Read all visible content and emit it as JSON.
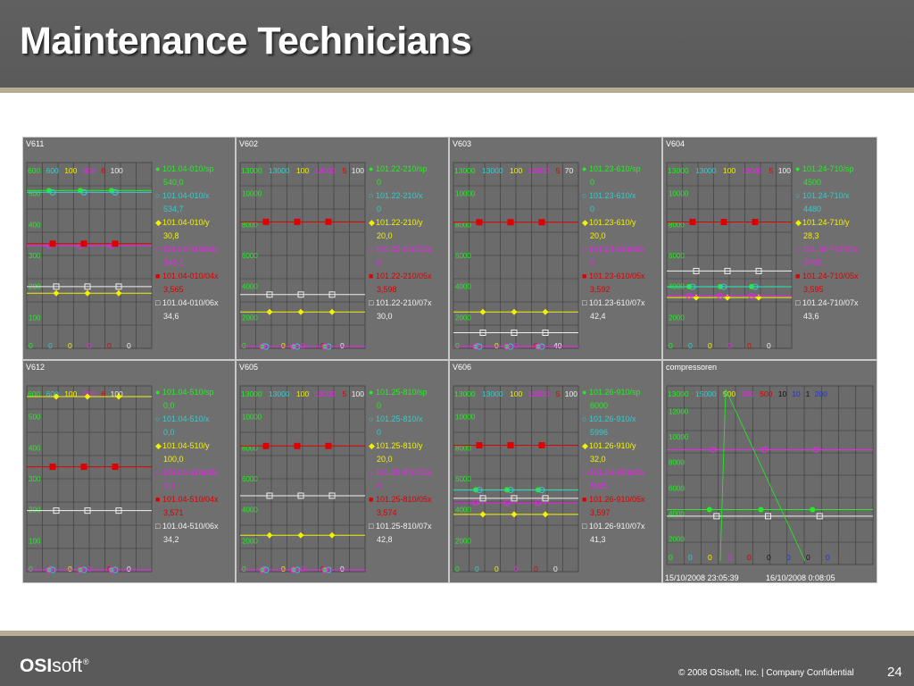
{
  "slide": {
    "title": "Maintenance Technicians",
    "logo": {
      "bold": "OSI",
      "light": "soft",
      "mark": "®"
    },
    "copyright": "© 2008 OSIsoft, Inc.  |  Company Confidential",
    "page_number": "24"
  },
  "colors": {
    "green": "#22ee22",
    "cyan": "#33cccc",
    "yellow": "#f2f200",
    "magenta": "#ee22ee",
    "red": "#dd0000",
    "white": "#f0f0f0",
    "blue": "#2233dd",
    "black": "#111111"
  },
  "chart_data": [
    {
      "name": "V611",
      "type": "line",
      "ylim": [
        0,
        600
      ],
      "y_ticks": [
        "500",
        "400",
        "300",
        "200",
        "100"
      ],
      "scale_tops": [
        {
          "text": "600",
          "color": "green"
        },
        {
          "text": "600",
          "color": "cyan"
        },
        {
          "text": "100",
          "color": "yellow"
        },
        {
          "text": "600",
          "color": "magenta"
        },
        {
          "text": "6",
          "color": "red"
        },
        {
          "text": "100",
          "color": "white"
        }
      ],
      "scale_bottoms": [
        {
          "text": "0",
          "color": "green"
        },
        {
          "text": "0",
          "color": "cyan"
        },
        {
          "text": "0",
          "color": "yellow"
        },
        {
          "text": "0",
          "color": "magenta"
        },
        {
          "text": "0",
          "color": "red"
        },
        {
          "text": "0",
          "color": "white"
        }
      ],
      "series": [
        {
          "tag": "101.04-010/sp",
          "value": "540,0",
          "color": "green",
          "marker": "circle",
          "level": 0.9
        },
        {
          "tag": "101.04-010/x",
          "value": "534,7",
          "color": "cyan",
          "marker": "circle-open",
          "level": 0.89
        },
        {
          "tag": "101.04-010/y",
          "value": "30,8",
          "color": "yellow",
          "marker": "diamond",
          "level": 0.308
        },
        {
          "tag": "101.04-010/02x",
          "value": "349,1",
          "color": "magenta",
          "marker": "circle-open",
          "level": 0.582
        },
        {
          "tag": "101.04-010/04x",
          "value": "3,565",
          "color": "red",
          "marker": "square",
          "level": 0.594
        },
        {
          "tag": "101.04-010/06x",
          "value": "34,6",
          "color": "white",
          "marker": "square-open",
          "level": 0.346
        }
      ]
    },
    {
      "name": "V602",
      "type": "line",
      "ylim": [
        0,
        13000
      ],
      "y_ticks": [
        "10000",
        "8000",
        "6000",
        "4000",
        "2000"
      ],
      "scale_tops": [
        {
          "text": "13000",
          "color": "green"
        },
        {
          "text": "13000",
          "color": "cyan"
        },
        {
          "text": "100",
          "color": "yellow"
        },
        {
          "text": "13000",
          "color": "magenta"
        },
        {
          "text": "5",
          "color": "red"
        },
        {
          "text": "100",
          "color": "white"
        }
      ],
      "scale_bottoms": [
        {
          "text": "0",
          "color": "green"
        },
        {
          "text": "0",
          "color": "cyan"
        },
        {
          "text": "0",
          "color": "yellow"
        },
        {
          "text": "0",
          "color": "magenta"
        },
        {
          "text": "0",
          "color": "red"
        },
        {
          "text": "0",
          "color": "white"
        }
      ],
      "series": [
        {
          "tag": "101.22-210/sp",
          "value": "0",
          "color": "green",
          "marker": "circle",
          "level": 0.0
        },
        {
          "tag": "101.22-210/x",
          "value": "0",
          "color": "cyan",
          "marker": "circle-open",
          "level": 0.0
        },
        {
          "tag": "101.22-210/y",
          "value": "20,0",
          "color": "yellow",
          "marker": "diamond",
          "level": 0.2
        },
        {
          "tag": "101.22-210/02x",
          "value": "0",
          "color": "magenta",
          "marker": "circle-open",
          "level": 0.0
        },
        {
          "tag": "101.22-210/05x",
          "value": "3,598",
          "color": "red",
          "marker": "square",
          "level": 0.72
        },
        {
          "tag": "101.22-210/07x",
          "value": "30,0",
          "color": "white",
          "marker": "square-open",
          "level": 0.3
        }
      ]
    },
    {
      "name": "V603",
      "type": "line",
      "ylim": [
        0,
        13000
      ],
      "y_ticks": [
        "10000",
        "8000",
        "6000",
        "4000",
        "2000"
      ],
      "scale_tops": [
        {
          "text": "13000",
          "color": "green"
        },
        {
          "text": "13000",
          "color": "cyan"
        },
        {
          "text": "100",
          "color": "yellow"
        },
        {
          "text": "13000",
          "color": "magenta"
        },
        {
          "text": "5",
          "color": "red"
        },
        {
          "text": "70",
          "color": "white"
        }
      ],
      "scale_bottoms": [
        {
          "text": "0",
          "color": "green"
        },
        {
          "text": "0",
          "color": "cyan"
        },
        {
          "text": "0",
          "color": "yellow"
        },
        {
          "text": "0",
          "color": "magenta"
        },
        {
          "text": "0",
          "color": "red"
        },
        {
          "text": "40",
          "color": "white"
        }
      ],
      "series": [
        {
          "tag": "101.23-610/sp",
          "value": "0",
          "color": "green",
          "marker": "circle",
          "level": 0.0
        },
        {
          "tag": "101.23-610/x",
          "value": "0",
          "color": "cyan",
          "marker": "circle-open",
          "level": 0.0
        },
        {
          "tag": "101.23-610/y",
          "value": "20,0",
          "color": "yellow",
          "marker": "diamond",
          "level": 0.2
        },
        {
          "tag": "101.23-610/02x",
          "value": "0",
          "color": "magenta",
          "marker": "circle-open",
          "level": 0.0
        },
        {
          "tag": "101.23-610/05x",
          "value": "3,592",
          "color": "red",
          "marker": "square",
          "level": 0.718
        },
        {
          "tag": "101.23-610/07x",
          "value": "42,4",
          "color": "white",
          "marker": "square-open",
          "level": 0.08
        }
      ]
    },
    {
      "name": "V604",
      "type": "line",
      "ylim": [
        0,
        13000
      ],
      "y_ticks": [
        "10000",
        "8000",
        "6000",
        "4000",
        "2000"
      ],
      "scale_tops": [
        {
          "text": "13000",
          "color": "green"
        },
        {
          "text": "13000",
          "color": "cyan"
        },
        {
          "text": "100",
          "color": "yellow"
        },
        {
          "text": "13000",
          "color": "magenta"
        },
        {
          "text": "5",
          "color": "red"
        },
        {
          "text": "100",
          "color": "white"
        }
      ],
      "scale_bottoms": [
        {
          "text": "0",
          "color": "green"
        },
        {
          "text": "0",
          "color": "cyan"
        },
        {
          "text": "0",
          "color": "yellow"
        },
        {
          "text": "0",
          "color": "magenta"
        },
        {
          "text": "0",
          "color": "red"
        },
        {
          "text": "0",
          "color": "white"
        }
      ],
      "series": [
        {
          "tag": "101.24-710/sp",
          "value": "4500",
          "color": "green",
          "marker": "circle",
          "level": 0.346
        },
        {
          "tag": "101.24-710/x",
          "value": "4480",
          "color": "cyan",
          "marker": "circle-open",
          "level": 0.345
        },
        {
          "tag": "101.24-710/y",
          "value": "28,3",
          "color": "yellow",
          "marker": "diamond",
          "level": 0.283
        },
        {
          "tag": "101.24-710/02x",
          "value": "3793",
          "color": "magenta",
          "marker": "circle-open",
          "level": 0.292
        },
        {
          "tag": "101.24-710/05x",
          "value": "3,595",
          "color": "red",
          "marker": "square",
          "level": 0.719
        },
        {
          "tag": "101.24-710/07x",
          "value": "43,6",
          "color": "white",
          "marker": "square-open",
          "level": 0.436
        }
      ]
    },
    {
      "name": "V612",
      "type": "line",
      "ylim": [
        0,
        600
      ],
      "y_ticks": [
        "500",
        "400",
        "300",
        "200",
        "100"
      ],
      "scale_tops": [
        {
          "text": "600",
          "color": "green"
        },
        {
          "text": "600",
          "color": "cyan"
        },
        {
          "text": "100",
          "color": "yellow"
        },
        {
          "text": "600",
          "color": "magenta"
        },
        {
          "text": "6",
          "color": "red"
        },
        {
          "text": "100",
          "color": "white"
        }
      ],
      "scale_bottoms": [
        {
          "text": "0",
          "color": "green"
        },
        {
          "text": "0",
          "color": "cyan"
        },
        {
          "text": "0",
          "color": "yellow"
        },
        {
          "text": "0",
          "color": "magenta"
        },
        {
          "text": "0",
          "color": "red"
        },
        {
          "text": "0",
          "color": "white"
        }
      ],
      "series": [
        {
          "tag": "101.04-510/sp",
          "value": "0,0",
          "color": "green",
          "marker": "circle",
          "level": 0.0
        },
        {
          "tag": "101.04-510/x",
          "value": "0,0",
          "color": "cyan",
          "marker": "circle-open",
          "level": 0.0
        },
        {
          "tag": "101.04-510/y",
          "value": "100,0",
          "color": "yellow",
          "marker": "diamond",
          "level": 1.0
        },
        {
          "tag": "101.04-510/02x",
          "value": "0,0",
          "color": "magenta",
          "marker": "circle-open",
          "level": 0.0
        },
        {
          "tag": "101.04-510/04x",
          "value": "3,571",
          "color": "red",
          "marker": "square",
          "level": 0.595
        },
        {
          "tag": "101.04-510/06x",
          "value": "34,2",
          "color": "white",
          "marker": "square-open",
          "level": 0.342
        }
      ]
    },
    {
      "name": "V605",
      "type": "line",
      "ylim": [
        0,
        13000
      ],
      "y_ticks": [
        "10000",
        "8000",
        "6000",
        "4000",
        "2000"
      ],
      "scale_tops": [
        {
          "text": "13000",
          "color": "green"
        },
        {
          "text": "13000",
          "color": "cyan"
        },
        {
          "text": "100",
          "color": "yellow"
        },
        {
          "text": "13000",
          "color": "magenta"
        },
        {
          "text": "5",
          "color": "red"
        },
        {
          "text": "100",
          "color": "white"
        }
      ],
      "scale_bottoms": [
        {
          "text": "0",
          "color": "green"
        },
        {
          "text": "0",
          "color": "cyan"
        },
        {
          "text": "0",
          "color": "yellow"
        },
        {
          "text": "0",
          "color": "magenta"
        },
        {
          "text": "0",
          "color": "red"
        },
        {
          "text": "0",
          "color": "white"
        }
      ],
      "series": [
        {
          "tag": "101.25-810/sp",
          "value": "0",
          "color": "green",
          "marker": "circle",
          "level": 0.0
        },
        {
          "tag": "101.25-810/x",
          "value": "0",
          "color": "cyan",
          "marker": "circle-open",
          "level": 0.0
        },
        {
          "tag": "101.25-810/y",
          "value": "20,0",
          "color": "yellow",
          "marker": "diamond",
          "level": 0.2
        },
        {
          "tag": "101.25-810/02x",
          "value": "0",
          "color": "magenta",
          "marker": "circle-open",
          "level": 0.0
        },
        {
          "tag": "101.25-810/05x",
          "value": "3,574",
          "color": "red",
          "marker": "square",
          "level": 0.715
        },
        {
          "tag": "101.25-810/07x",
          "value": "42,8",
          "color": "white",
          "marker": "square-open",
          "level": 0.428
        }
      ]
    },
    {
      "name": "V606",
      "type": "line",
      "ylim": [
        0,
        13000
      ],
      "y_ticks": [
        "10000",
        "8000",
        "6000",
        "4000",
        "2000"
      ],
      "scale_tops": [
        {
          "text": "13000",
          "color": "green"
        },
        {
          "text": "13000",
          "color": "cyan"
        },
        {
          "text": "100",
          "color": "yellow"
        },
        {
          "text": "13000",
          "color": "magenta"
        },
        {
          "text": "5",
          "color": "red"
        },
        {
          "text": "100",
          "color": "white"
        }
      ],
      "scale_bottoms": [
        {
          "text": "0",
          "color": "green"
        },
        {
          "text": "0",
          "color": "cyan"
        },
        {
          "text": "0",
          "color": "yellow"
        },
        {
          "text": "0",
          "color": "magenta"
        },
        {
          "text": "0",
          "color": "red"
        },
        {
          "text": "0",
          "color": "white"
        }
      ],
      "series": [
        {
          "tag": "101.26-910/sp",
          "value": "6000",
          "color": "green",
          "marker": "circle",
          "level": 0.462
        },
        {
          "tag": "101.26-910/x",
          "value": "5996",
          "color": "cyan",
          "marker": "circle-open",
          "level": 0.461
        },
        {
          "tag": "101.26-910/y",
          "value": "32,0",
          "color": "yellow",
          "marker": "diamond",
          "level": 0.32
        },
        {
          "tag": "101.26-910/02x",
          "value": "5025",
          "color": "magenta",
          "marker": "circle-open",
          "level": 0.387
        },
        {
          "tag": "101.26-910/05x",
          "value": "3,597",
          "color": "red",
          "marker": "square",
          "level": 0.719
        },
        {
          "tag": "101.26-910/07x",
          "value": "41,3",
          "color": "white",
          "marker": "square-open",
          "level": 0.413
        }
      ]
    },
    {
      "name": "compressoren",
      "type": "line",
      "ylim": [
        0,
        15000
      ],
      "y_ticks": [
        "12000",
        "10000",
        "8000",
        "6000",
        "4000",
        "2000"
      ],
      "scale_tops": [
        {
          "text": "13000",
          "color": "green"
        },
        {
          "text": "15000",
          "color": "cyan"
        },
        {
          "text": "500",
          "color": "yellow"
        },
        {
          "text": "200",
          "color": "magenta"
        },
        {
          "text": "500",
          "color": "red"
        },
        {
          "text": "10",
          "color": "black"
        },
        {
          "text": "10",
          "color": "blue"
        },
        {
          "text": "1",
          "color": "black"
        },
        {
          "text": "200",
          "color": "blue"
        }
      ],
      "scale_bottoms": [
        {
          "text": "0",
          "color": "green"
        },
        {
          "text": "0",
          "color": "cyan"
        },
        {
          "text": "0",
          "color": "yellow"
        },
        {
          "text": "0",
          "color": "magenta"
        },
        {
          "text": "0",
          "color": "red"
        },
        {
          "text": "0",
          "color": "black"
        },
        {
          "text": "0",
          "color": "blue"
        },
        {
          "text": "0",
          "color": "black"
        },
        {
          "text": "0",
          "color": "blue"
        }
      ],
      "time_start": "15/10/2008 23:05:39",
      "time_end": "16/10/2008 0:08:05",
      "series": [
        {
          "color": "green",
          "marker": "circle",
          "level": 0.32
        },
        {
          "color": "magenta",
          "marker": "circle-open",
          "level": 0.68
        },
        {
          "color": "white",
          "marker": "square-open",
          "level": 0.28
        }
      ]
    }
  ]
}
